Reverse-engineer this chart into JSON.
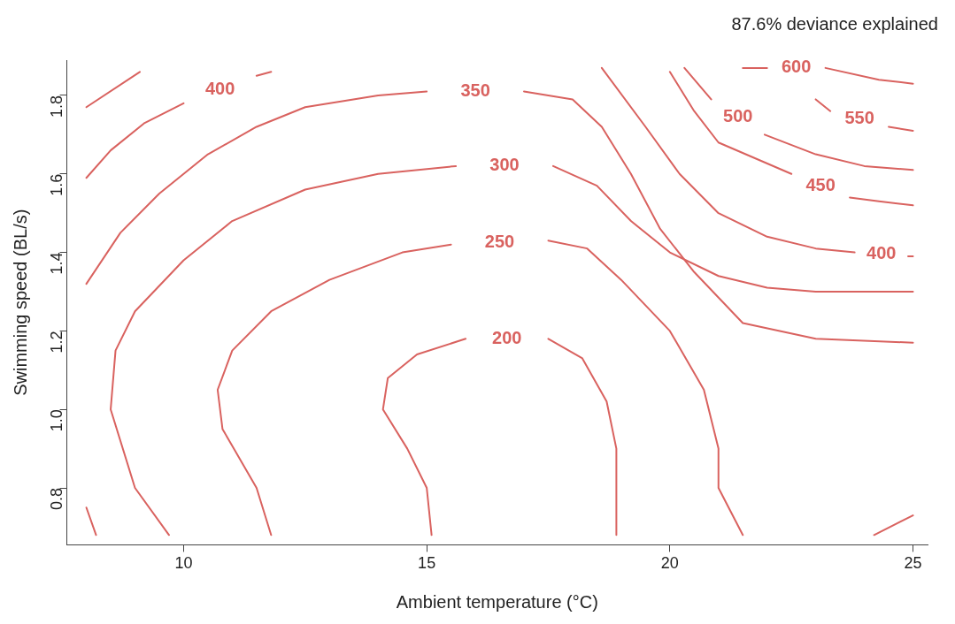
{
  "chart_data": {
    "type": "line",
    "annotations": [
      "87.6% deviance explained"
    ],
    "xlabel": "Ambient temperature (°C)",
    "ylabel": "Swimming speed (BL/s)",
    "xlim": [
      7.6,
      25.3
    ],
    "xticks": [
      10,
      15,
      20,
      25
    ],
    "ylim": [
      0.655,
      1.89
    ],
    "yticks": [
      0.8,
      {
        "value": 1.0,
        "label": "1.0"
      },
      1.2,
      1.4,
      1.6,
      1.8
    ],
    "grid": false,
    "legend": false,
    "marker": "none",
    "line_style": "solid",
    "series": [
      {
        "name": "200",
        "color": "#d9625f",
        "x": [
          15.1,
          15.0,
          14.6,
          14.1,
          14.2,
          14.8,
          15.8,
          16.65,
          17.5,
          18.2,
          18.7,
          18.9,
          18.9
        ],
        "values": [
          0.68,
          0.8,
          0.9,
          1.0,
          1.08,
          1.14,
          1.18,
          null,
          1.18,
          1.13,
          1.02,
          0.9,
          0.68
        ]
      },
      {
        "name": "250",
        "color": "#d9625f",
        "x": [
          11.8,
          11.5,
          10.8,
          10.7,
          11.0,
          11.8,
          13.0,
          14.5,
          15.5,
          16.5,
          17.5,
          18.3,
          19.0,
          20.0,
          20.7,
          21.0,
          21.0,
          21.5
        ],
        "values": [
          0.68,
          0.8,
          0.95,
          1.05,
          1.15,
          1.25,
          1.33,
          1.4,
          1.42,
          null,
          1.43,
          1.41,
          1.33,
          1.2,
          1.05,
          0.9,
          0.8,
          0.68
        ]
      },
      {
        "name": "300",
        "color": "#d9625f",
        "x": [
          9.7,
          9.0,
          8.5,
          8.6,
          9.0,
          10.0,
          11.0,
          12.5,
          14.0,
          15.6,
          16.6,
          17.6,
          18.5,
          19.2,
          20.0,
          21.0,
          22.0,
          23.0,
          25.0
        ],
        "values": [
          0.68,
          0.8,
          1.0,
          1.15,
          1.25,
          1.38,
          1.48,
          1.56,
          1.6,
          1.62,
          null,
          1.62,
          1.57,
          1.48,
          1.4,
          1.34,
          1.31,
          1.3,
          1.3
        ]
      },
      {
        "name": "350",
        "color": "#d9625f",
        "x": [
          8.0,
          8.7,
          9.5,
          10.5,
          11.5,
          12.5,
          14.0,
          15.0,
          16.0,
          17.0,
          18.0,
          18.6,
          19.2,
          19.8,
          20.5,
          21.5,
          23.0,
          25.0
        ],
        "values": [
          1.32,
          1.45,
          1.55,
          1.65,
          1.72,
          1.77,
          1.8,
          1.81,
          null,
          1.81,
          1.79,
          1.72,
          1.6,
          1.46,
          1.35,
          1.22,
          1.18,
          1.17
        ]
      },
      {
        "name": "400",
        "color": "#d9625f",
        "x": [
          8.0,
          8.5,
          9.2,
          10.0,
          11.0,
          11.5,
          11.8,
          null,
          null,
          18.6,
          19.5,
          20.2,
          21.0,
          22.0,
          23.0,
          23.8,
          24.4,
          24.9,
          25.0
        ],
        "values": [
          1.59,
          1.66,
          1.73,
          1.78,
          null,
          1.85,
          1.86,
          null,
          null,
          1.87,
          1.72,
          1.6,
          1.5,
          1.44,
          1.41,
          1.4,
          null,
          1.39,
          1.39
        ]
      },
      {
        "name": "450",
        "color": "#d9625f",
        "x": [
          20.0,
          20.5,
          21.0,
          22.5,
          23.1,
          23.7,
          24.3,
          25.0
        ],
        "values": [
          1.86,
          1.76,
          1.68,
          1.6,
          null,
          1.54,
          1.53,
          1.52
        ]
      },
      {
        "name": "500",
        "color": "#d9625f",
        "x": [
          20.3,
          20.85,
          21.4,
          21.95,
          23.0,
          24.0,
          25.0
        ],
        "values": [
          1.87,
          1.79,
          null,
          1.7,
          1.65,
          1.62,
          1.61
        ]
      },
      {
        "name": "550",
        "color": "#d9625f",
        "x": [
          23.0,
          23.3,
          23.9,
          24.5,
          25.0
        ],
        "values": [
          1.79,
          1.76,
          null,
          1.72,
          1.71
        ]
      },
      {
        "name": "600",
        "color": "#d9625f",
        "x": [
          21.5,
          22.0,
          22.6,
          23.2,
          24.3,
          25.0
        ],
        "values": [
          1.87,
          1.87,
          null,
          1.87,
          1.84,
          1.83
        ]
      },
      {
        "color": "#d9625f",
        "x": [
          8.0,
          9.1
        ],
        "values": [
          1.77,
          1.86
        ]
      },
      {
        "color": "#d9625f",
        "x": [
          8.0,
          8.2
        ],
        "values": [
          0.75,
          0.68
        ]
      },
      {
        "color": "#d9625f",
        "x": [
          24.2,
          25.0
        ],
        "values": [
          0.68,
          0.73
        ]
      }
    ]
  }
}
